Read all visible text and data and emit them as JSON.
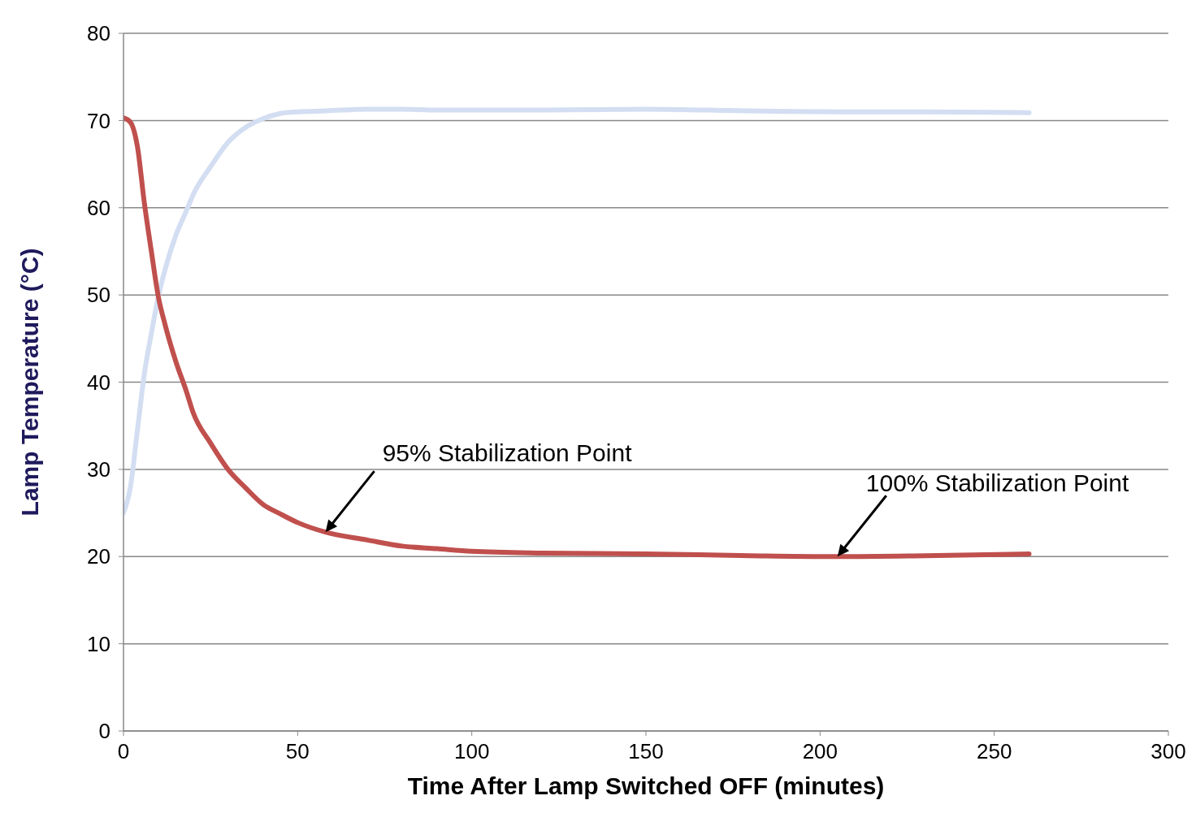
{
  "chart_data": {
    "type": "line",
    "xlabel": "Time After Lamp Switched OFF (minutes)",
    "ylabel": "Lamp Temperature (°C)",
    "x": [
      0,
      2,
      4,
      6,
      8,
      10,
      12,
      15,
      18,
      20,
      25,
      30,
      35,
      40,
      45,
      50,
      58,
      70,
      80,
      90,
      100,
      120,
      150,
      180,
      205,
      230,
      260
    ],
    "series": [
      {
        "color": "#c0504d",
        "values": [
          70.3,
          69.8,
          67,
          60.5,
          55,
          49.8,
          46.5,
          42.4,
          39,
          36.5,
          33,
          30,
          27.9,
          26,
          24.9,
          23.9,
          22.8,
          21.9,
          21.2,
          20.9,
          20.6,
          20.4,
          20.3,
          20.1,
          20,
          20.1,
          20.3
        ]
      },
      {
        "color": "#d3def2",
        "values": [
          25,
          28,
          34.5,
          41,
          45.6,
          49.8,
          53,
          56.8,
          59.6,
          61.5,
          64.7,
          67.5,
          69.2,
          70.2,
          70.8,
          71,
          71.1,
          71.3,
          71.3,
          71.2,
          71.2,
          71.2,
          71.3,
          71.1,
          71,
          71,
          70.9
        ]
      }
    ],
    "xlim": [
      0,
      300
    ],
    "xticks": [
      0,
      50,
      100,
      150,
      200,
      250,
      300
    ],
    "ylim": [
      0,
      80
    ],
    "yticks": [
      0,
      10,
      20,
      30,
      40,
      50,
      60,
      70,
      80
    ],
    "grid": "y",
    "annotations": [
      {
        "text": "95% Stabilization Point",
        "x": 58,
        "y": 22.8
      },
      {
        "text": "100% Stabilization Point",
        "x": 205,
        "y": 20
      }
    ]
  }
}
